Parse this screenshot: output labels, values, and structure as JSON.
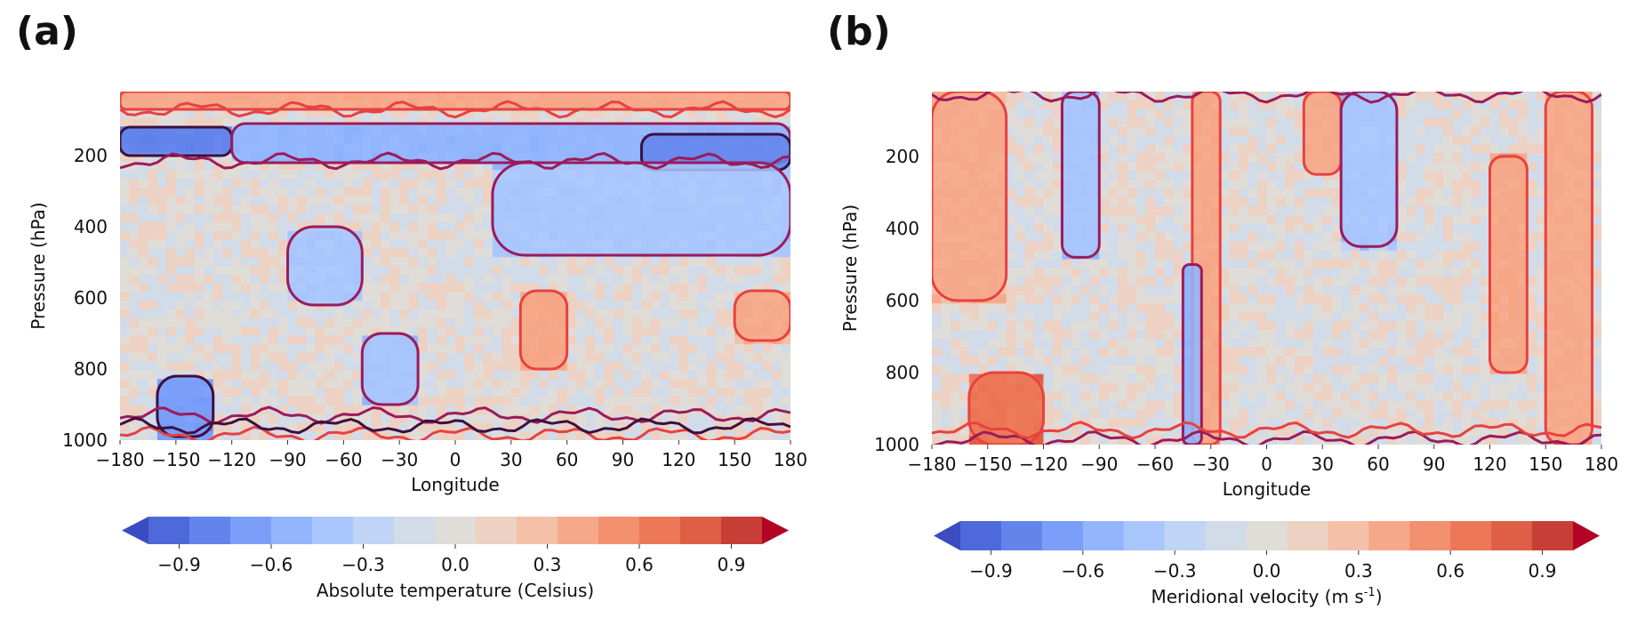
{
  "panels": [
    {
      "label": "(a)",
      "chart_data": {
        "type": "heatmap",
        "title": "",
        "xlabel": "Longitude",
        "ylabel": "Pressure (hPa)",
        "xlim": [
          -180,
          180
        ],
        "ylim": [
          1000,
          20
        ],
        "y_inverted": true,
        "x_ticks": [
          -180,
          -150,
          -120,
          -90,
          -60,
          -30,
          0,
          30,
          60,
          90,
          120,
          150,
          180
        ],
        "x_tick_labels": [
          "−180",
          "−150",
          "−120",
          "−90",
          "−60",
          "−30",
          "0",
          "30",
          "60",
          "90",
          "120",
          "150",
          "180"
        ],
        "y_ticks": [
          200,
          400,
          600,
          800,
          1000
        ],
        "y_tick_labels": [
          "200",
          "400",
          "600",
          "800",
          "1000"
        ],
        "colorbar": {
          "label": "Absolute temperature (Celsius)",
          "label_sup": "",
          "label_after": "",
          "range": [
            -1.0,
            1.0
          ],
          "extend": "both",
          "ticks": [
            -0.9,
            -0.6,
            -0.3,
            0.0,
            0.3,
            0.6,
            0.9
          ],
          "tick_labels": [
            "−0.9",
            "−0.6",
            "−0.3",
            "0.0",
            "0.3",
            "0.6",
            "0.9"
          ]
        },
        "regions": [
          {
            "lon": [
              -180,
              180
            ],
            "p": [
              20,
              70
            ],
            "value": 0.35
          },
          {
            "lon": [
              -180,
              -120
            ],
            "p": [
              120,
              200
            ],
            "value": -0.7
          },
          {
            "lon": [
              -120,
              180
            ],
            "p": [
              110,
              220
            ],
            "value": -0.45
          },
          {
            "lon": [
              100,
              180
            ],
            "p": [
              140,
              240
            ],
            "value": -0.7
          },
          {
            "lon": [
              20,
              180
            ],
            "p": [
              220,
              480
            ],
            "value": -0.35
          },
          {
            "lon": [
              -90,
              -50
            ],
            "p": [
              400,
              620
            ],
            "value": -0.35
          },
          {
            "lon": [
              35,
              60
            ],
            "p": [
              580,
              800
            ],
            "value": 0.4
          },
          {
            "lon": [
              -50,
              -20
            ],
            "p": [
              700,
              900
            ],
            "value": -0.4
          },
          {
            "lon": [
              -160,
              -130
            ],
            "p": [
              820,
              990
            ],
            "value": -0.6
          },
          {
            "lon": [
              150,
              180
            ],
            "p": [
              580,
              720
            ],
            "value": 0.3
          }
        ],
        "contour_levels": [
          {
            "name": "positive",
            "color": "#e8413f"
          },
          {
            "name": "negative",
            "color": "#9a1b5b"
          },
          {
            "name": "strong-negative",
            "color": "#3b1040"
          }
        ]
      }
    },
    {
      "label": "(b)",
      "chart_data": {
        "type": "heatmap",
        "title": "",
        "xlabel": "Longitude",
        "ylabel": "Pressure (hPa)",
        "xlim": [
          -180,
          180
        ],
        "ylim": [
          1000,
          20
        ],
        "y_inverted": true,
        "x_ticks": [
          -180,
          -150,
          -120,
          -90,
          -60,
          -30,
          0,
          30,
          60,
          90,
          120,
          150,
          180
        ],
        "x_tick_labels": [
          "−180",
          "−150",
          "−120",
          "−90",
          "−60",
          "−30",
          "0",
          "30",
          "60",
          "90",
          "120",
          "150",
          "180"
        ],
        "y_ticks": [
          200,
          400,
          600,
          800,
          1000
        ],
        "y_tick_labels": [
          "200",
          "400",
          "600",
          "800",
          "1000"
        ],
        "colorbar": {
          "label": "Meridional velocity (m s",
          "label_sup": "-1",
          "label_after": ")",
          "range": [
            -1.0,
            1.0
          ],
          "extend": "both",
          "ticks": [
            -0.9,
            -0.6,
            -0.3,
            0.0,
            0.3,
            0.6,
            0.9
          ],
          "tick_labels": [
            "−0.9",
            "−0.6",
            "−0.3",
            "0.0",
            "0.3",
            "0.6",
            "0.9"
          ]
        },
        "regions": [
          {
            "lon": [
              -180,
              -140
            ],
            "p": [
              20,
              600
            ],
            "value": 0.3
          },
          {
            "lon": [
              -110,
              -90
            ],
            "p": [
              20,
              480
            ],
            "value": -0.4
          },
          {
            "lon": [
              -40,
              -25
            ],
            "p": [
              20,
              1000
            ],
            "value": 0.35
          },
          {
            "lon": [
              20,
              40
            ],
            "p": [
              20,
              250
            ],
            "value": 0.3
          },
          {
            "lon": [
              -45,
              -35
            ],
            "p": [
              500,
              1000
            ],
            "value": -0.5
          },
          {
            "lon": [
              40,
              70
            ],
            "p": [
              20,
              450
            ],
            "value": -0.35
          },
          {
            "lon": [
              120,
              140
            ],
            "p": [
              200,
              800
            ],
            "value": 0.35
          },
          {
            "lon": [
              150,
              175
            ],
            "p": [
              20,
              1000
            ],
            "value": 0.3
          },
          {
            "lon": [
              -160,
              -120
            ],
            "p": [
              800,
              1000
            ],
            "value": 0.6
          }
        ],
        "contour_levels": [
          {
            "name": "positive",
            "color": "#e8413f"
          },
          {
            "name": "negative",
            "color": "#9a1b5b"
          },
          {
            "name": "strong-negative",
            "color": "#3b1040"
          }
        ]
      }
    }
  ],
  "colors": {
    "cmap": [
      "#3b4cc0",
      "#4e69d9",
      "#6384eb",
      "#7b9ff9",
      "#93b5fe",
      "#aac7fd",
      "#c0d4f5",
      "#d2dbe8",
      "#e0dcd7",
      "#edd1c2",
      "#f4c0a8",
      "#f6a98a",
      "#f3906f",
      "#ec7857",
      "#de5f45",
      "#c83e36",
      "#b40426"
    ],
    "background": "#d9dbe2",
    "missing": "#e9e9f3"
  }
}
